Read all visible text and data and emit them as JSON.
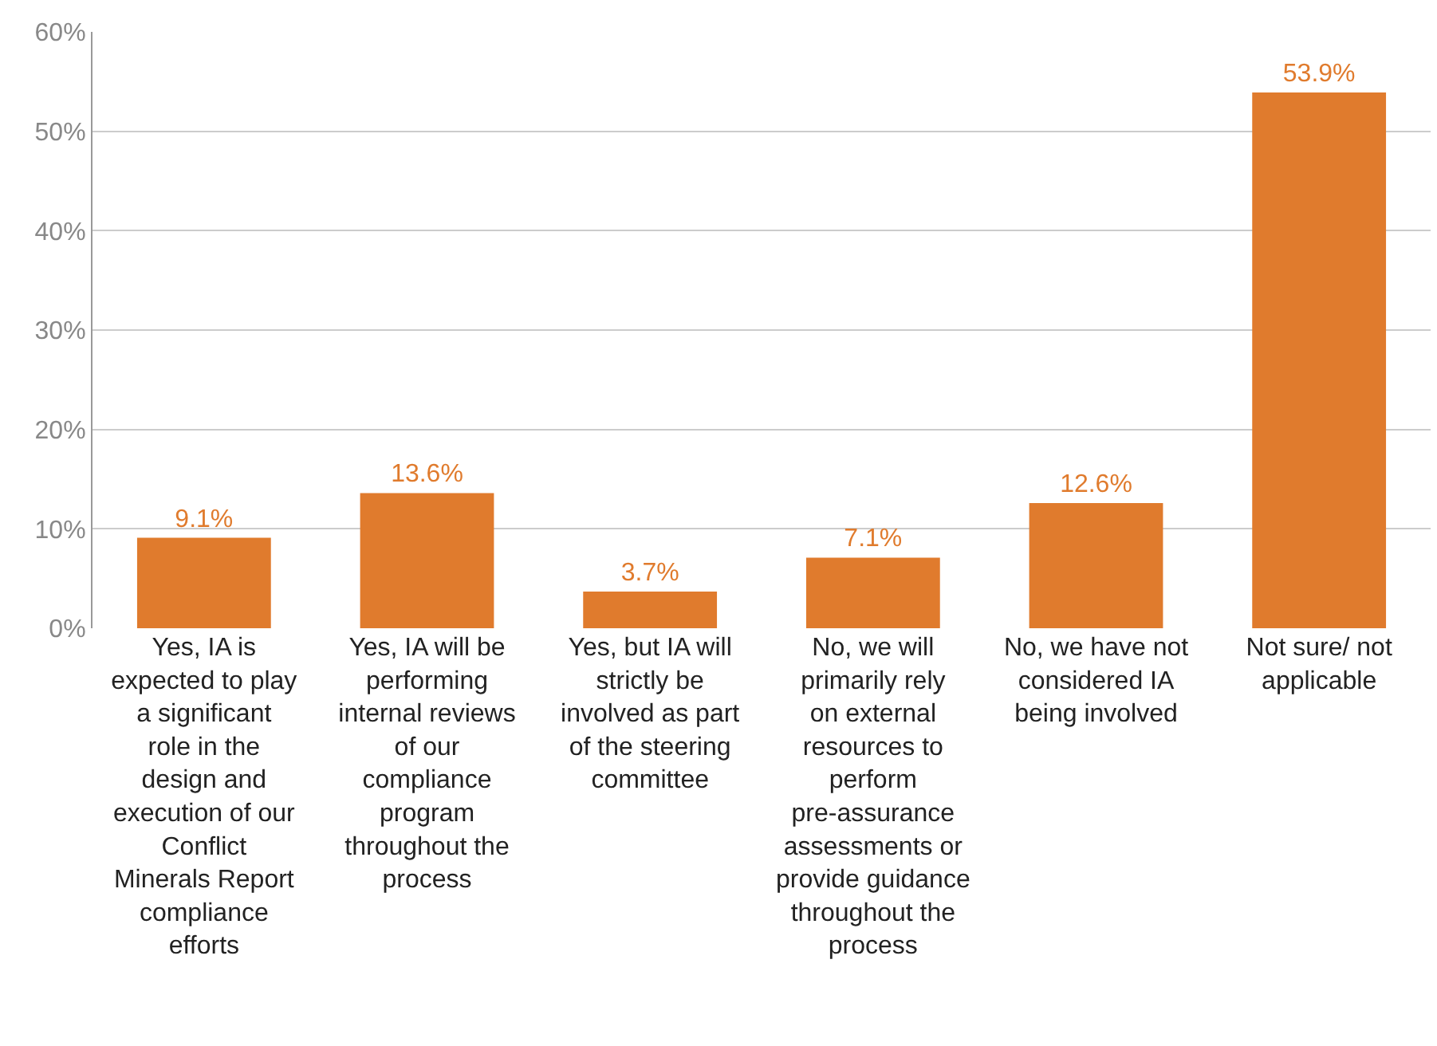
{
  "chart_data": {
    "type": "bar",
    "categories": [
      "Yes, IA is expected to play a significant role in the design and execution of our Conflict Minerals Report compliance efforts",
      "Yes, IA will be performing internal reviews of our compliance program throughout the process",
      "Yes, but IA will strictly be involved as part of the steering committee",
      "No, we will primarily rely on external resources to perform pre-assurance assessments or provide guidance throughout the process",
      "No, we have not considered IA being involved",
      "Not sure/ not applicable"
    ],
    "values": [
      9.1,
      13.6,
      3.7,
      7.1,
      12.6,
      53.9
    ],
    "value_labels": [
      "9.1%",
      "13.6%",
      "3.7%",
      "7.1%",
      "12.6%",
      "53.9%"
    ],
    "color": "#e07b2d",
    "ylim": [
      0,
      60
    ],
    "yticks": [
      {
        "value": 0,
        "label": "0%"
      },
      {
        "value": 10,
        "label": "10%"
      },
      {
        "value": 20,
        "label": "20%"
      },
      {
        "value": 30,
        "label": "30%"
      },
      {
        "value": 40,
        "label": "40%"
      },
      {
        "value": 50,
        "label": "50%"
      },
      {
        "value": 60,
        "label": "60%"
      }
    ],
    "grid": "y"
  }
}
